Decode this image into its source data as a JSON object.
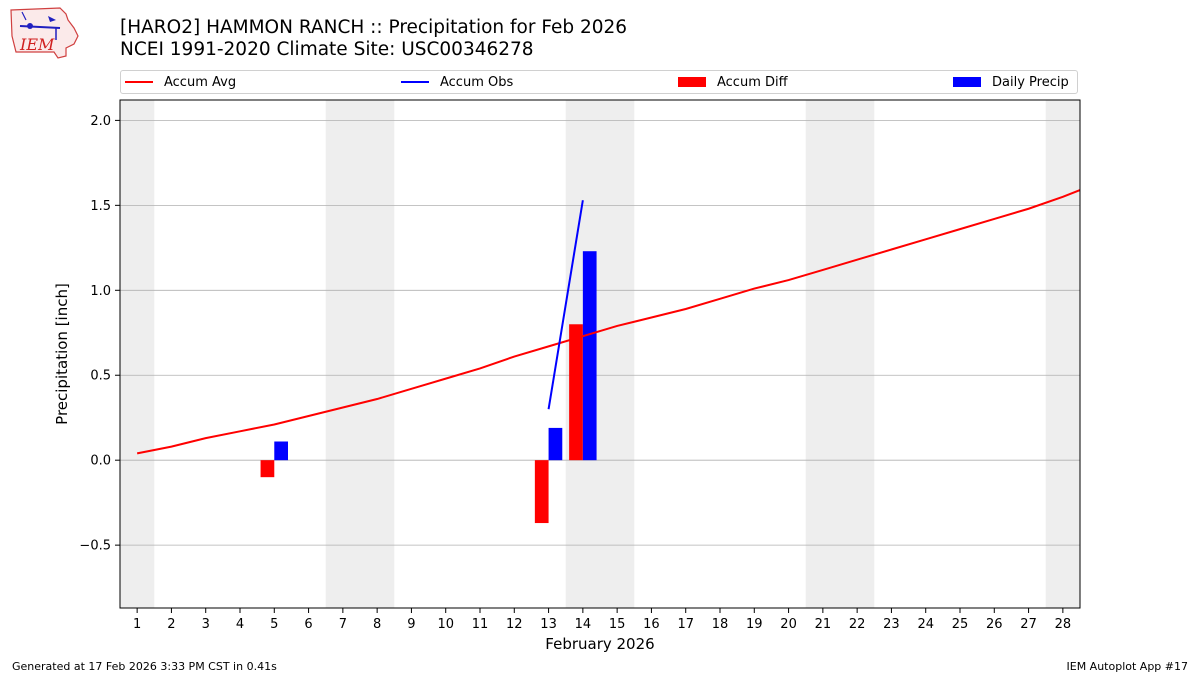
{
  "header": {
    "title_line1": "[HARO2] HAMMON RANCH :: Precipitation for Feb 2026",
    "title_line2": "NCEI 1991-2020 Climate Site: USC00346278",
    "logo_text": "IEM"
  },
  "footer": {
    "generated": "Generated at 17 Feb 2026 3:33 PM CST in 0.41s",
    "app": "IEM Autoplot App #17"
  },
  "colors": {
    "accum_avg": "#ff0000",
    "accum_obs": "#0000ff",
    "accum_diff": "#ff0000",
    "daily_precip": "#0000ff",
    "weekend_band": "#eeeeee",
    "grid": "#b0b0b0"
  },
  "chart_data": {
    "type": "bar+line",
    "xlabel": "February 2026",
    "ylabel": "Precipitation [inch]",
    "xlim": [
      0.5,
      28.5
    ],
    "ylim": [
      -0.87,
      2.12
    ],
    "x_ticks": [
      1,
      2,
      3,
      4,
      5,
      6,
      7,
      8,
      9,
      10,
      11,
      12,
      13,
      14,
      15,
      16,
      17,
      18,
      19,
      20,
      21,
      22,
      23,
      24,
      25,
      26,
      27,
      28
    ],
    "y_ticks": [
      -0.5,
      0.0,
      0.5,
      1.0,
      1.5,
      2.0
    ],
    "y_tick_labels": [
      "−0.5",
      "0.0",
      "0.5",
      "1.0",
      "1.5",
      "2.0"
    ],
    "grid": "horizontal",
    "weekend_bands": [
      [
        0.5,
        1.5
      ],
      [
        6.5,
        8.5
      ],
      [
        13.5,
        15.5
      ],
      [
        20.5,
        22.5
      ],
      [
        27.5,
        28.5
      ]
    ],
    "legend": [
      "Accum Avg",
      "Accum Obs",
      "Accum Diff",
      "Daily Precip"
    ],
    "series": [
      {
        "name": "Accum Avg",
        "kind": "line",
        "x": [
          1,
          2,
          3,
          4,
          5,
          6,
          7,
          8,
          9,
          10,
          11,
          12,
          13,
          14,
          15,
          16,
          17,
          18,
          19,
          20,
          21,
          22,
          23,
          24,
          25,
          26,
          27,
          28,
          28.5
        ],
        "values": [
          0.04,
          0.08,
          0.13,
          0.17,
          0.21,
          0.26,
          0.31,
          0.36,
          0.42,
          0.48,
          0.54,
          0.61,
          0.67,
          0.73,
          0.79,
          0.84,
          0.89,
          0.95,
          1.01,
          1.06,
          1.12,
          1.18,
          1.24,
          1.3,
          1.36,
          1.42,
          1.48,
          1.55,
          1.59
        ]
      },
      {
        "name": "Accum Obs",
        "kind": "line",
        "x": [
          13,
          14
        ],
        "values": [
          0.3,
          1.53
        ]
      },
      {
        "name": "Accum Diff",
        "kind": "bar",
        "x": [
          5,
          13,
          14
        ],
        "values": [
          -0.1,
          -0.37,
          0.8
        ]
      },
      {
        "name": "Daily Precip",
        "kind": "bar",
        "x": [
          5,
          13,
          14
        ],
        "values": [
          0.11,
          0.19,
          1.23
        ]
      }
    ]
  }
}
